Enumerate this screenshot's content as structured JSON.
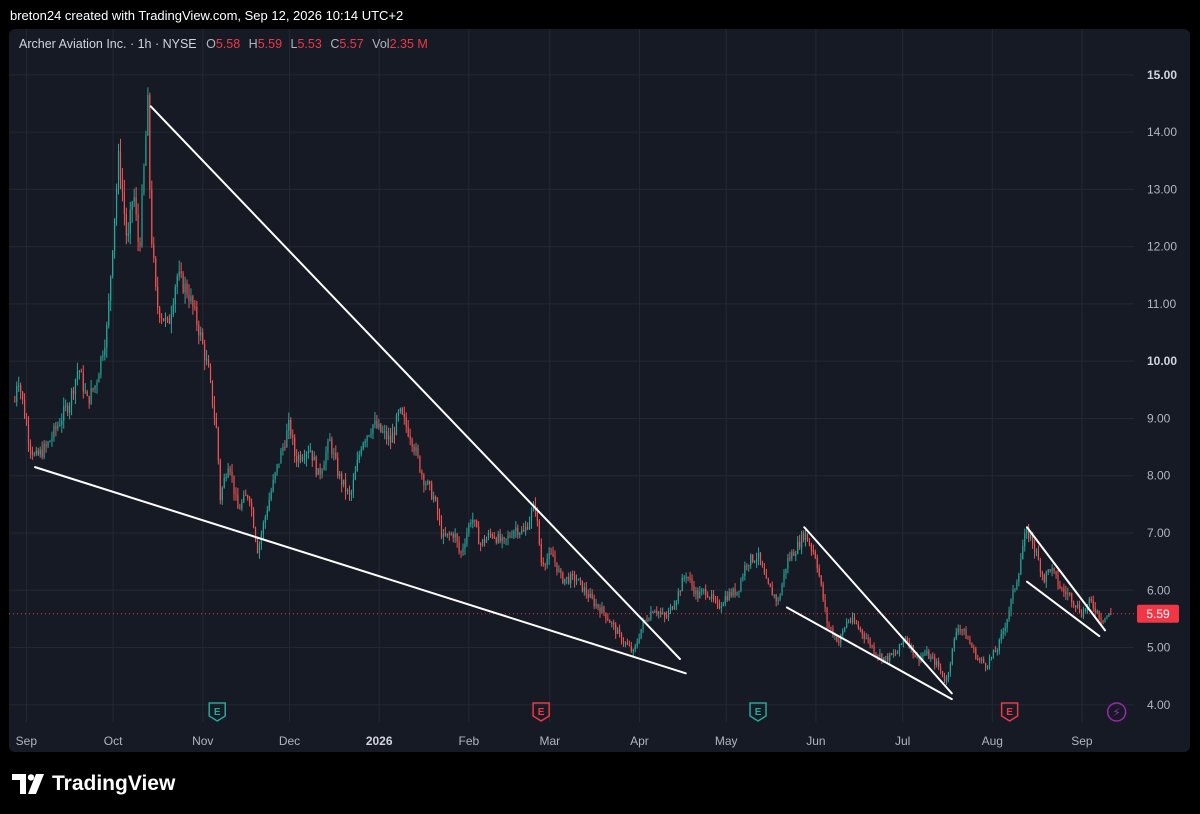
{
  "attribution": "breton24 created with TradingView.com, Sep 12, 2026 10:14 UTC+2",
  "legend": {
    "symbol": "Archer Aviation Inc. · 1h · NYSE",
    "o_label": "O",
    "o_value": "5.58",
    "h_label": "H",
    "h_value": "5.59",
    "l_label": "L",
    "l_value": "5.53",
    "c_label": "C",
    "c_value": "5.57",
    "vol_label": "Vol",
    "vol_value": "2.35 M"
  },
  "brand": {
    "name": "TradingView"
  },
  "colors": {
    "up": "#26a69a",
    "down": "#ef5350",
    "background": "#161a25",
    "grid": "#242833",
    "trendline": "#ffffff",
    "price_tag": "#f23645",
    "earnings_up": "#26a69a",
    "earnings_down": "#f23645",
    "dividend": "#9c27b0"
  },
  "chart_data": {
    "type": "candlestick",
    "interval": "1h",
    "grid": true,
    "ylim": [
      3.7,
      15.8
    ],
    "y_ticks": [
      "4.00",
      "5.00",
      "6.00",
      "7.00",
      "8.00",
      "9.00",
      "10.00",
      "11.00",
      "12.00",
      "13.00",
      "14.00",
      "15.00"
    ],
    "y_ticks_bold": [
      "10.00",
      "15.00"
    ],
    "x_ticks": [
      "Sep",
      "Oct",
      "Nov",
      "Dec",
      "2026",
      "Feb",
      "Mar",
      "Apr",
      "May",
      "Jun",
      "Jul",
      "Aug",
      "Sep"
    ],
    "x_ticks_bold": [
      "2026"
    ],
    "last_price": "5.59",
    "price_path": [
      [
        "2025-08-28",
        9.3
      ],
      [
        "2025-08-29",
        9.8
      ],
      [
        "2025-09-02",
        8.6
      ],
      [
        "2025-09-04",
        8.3
      ],
      [
        "2025-09-08",
        8.5
      ],
      [
        "2025-09-12",
        8.9
      ],
      [
        "2025-09-16",
        9.3
      ],
      [
        "2025-09-19",
        9.9
      ],
      [
        "2025-09-22",
        9.3
      ],
      [
        "2025-09-25",
        9.6
      ],
      [
        "2025-09-29",
        10.6
      ],
      [
        "2025-10-01",
        12.2
      ],
      [
        "2025-10-03",
        13.6
      ],
      [
        "2025-10-06",
        12.0
      ],
      [
        "2025-10-08",
        13.0
      ],
      [
        "2025-10-10",
        11.9
      ],
      [
        "2025-10-13",
        14.5
      ],
      [
        "2025-10-14",
        12.4
      ],
      [
        "2025-10-16",
        11.0
      ],
      [
        "2025-10-20",
        10.6
      ],
      [
        "2025-10-23",
        11.5
      ],
      [
        "2025-10-27",
        11.2
      ],
      [
        "2025-10-31",
        10.5
      ],
      [
        "2025-11-03",
        9.8
      ],
      [
        "2025-11-06",
        8.7
      ],
      [
        "2025-11-07",
        7.6
      ],
      [
        "2025-11-10",
        8.3
      ],
      [
        "2025-11-13",
        7.4
      ],
      [
        "2025-11-17",
        7.7
      ],
      [
        "2025-11-20",
        6.7
      ],
      [
        "2025-11-24",
        7.6
      ],
      [
        "2025-11-27",
        8.2
      ],
      [
        "2025-12-01",
        8.9
      ],
      [
        "2025-12-03",
        8.3
      ],
      [
        "2025-12-08",
        8.5
      ],
      [
        "2025-12-11",
        8.0
      ],
      [
        "2025-12-15",
        8.6
      ],
      [
        "2025-12-18",
        8.0
      ],
      [
        "2025-12-22",
        7.6
      ],
      [
        "2025-12-26",
        8.6
      ],
      [
        "2025-12-30",
        8.9
      ],
      [
        "2026-01-05",
        8.6
      ],
      [
        "2026-01-08",
        9.1
      ],
      [
        "2026-01-12",
        8.7
      ],
      [
        "2026-01-16",
        8.0
      ],
      [
        "2026-01-20",
        7.6
      ],
      [
        "2026-01-23",
        6.9
      ],
      [
        "2026-01-27",
        7.0
      ],
      [
        "2026-01-29",
        6.6
      ],
      [
        "2026-02-02",
        7.3
      ],
      [
        "2026-02-05",
        6.8
      ],
      [
        "2026-02-09",
        7.0
      ],
      [
        "2026-02-13",
        6.8
      ],
      [
        "2026-02-17",
        7.1
      ],
      [
        "2026-02-20",
        7.0
      ],
      [
        "2026-02-24",
        7.5
      ],
      [
        "2026-02-26",
        6.5
      ],
      [
        "2026-03-02",
        6.6
      ],
      [
        "2026-03-05",
        6.2
      ],
      [
        "2026-03-10",
        6.2
      ],
      [
        "2026-03-16",
        5.8
      ],
      [
        "2026-03-20",
        5.6
      ],
      [
        "2026-03-25",
        5.2
      ],
      [
        "2026-03-30",
        4.9
      ],
      [
        "2026-04-02",
        5.4
      ],
      [
        "2026-04-06",
        5.7
      ],
      [
        "2026-04-10",
        5.5
      ],
      [
        "2026-04-14",
        5.9
      ],
      [
        "2026-04-17",
        6.3
      ],
      [
        "2026-04-21",
        5.9
      ],
      [
        "2026-04-24",
        6.0
      ],
      [
        "2026-04-28",
        5.7
      ],
      [
        "2026-05-01",
        5.9
      ],
      [
        "2026-05-05",
        6.0
      ],
      [
        "2026-05-08",
        6.5
      ],
      [
        "2026-05-12",
        6.6
      ],
      [
        "2026-05-15",
        6.1
      ],
      [
        "2026-05-19",
        5.8
      ],
      [
        "2026-05-22",
        6.5
      ],
      [
        "2026-05-26",
        6.8
      ],
      [
        "2026-05-28",
        7.0
      ],
      [
        "2026-06-01",
        6.6
      ],
      [
        "2026-06-03",
        6.0
      ],
      [
        "2026-06-05",
        5.4
      ],
      [
        "2026-06-09",
        5.1
      ],
      [
        "2026-06-12",
        5.5
      ],
      [
        "2026-06-15",
        5.4
      ],
      [
        "2026-06-18",
        5.2
      ],
      [
        "2026-06-22",
        4.9
      ],
      [
        "2026-06-25",
        4.8
      ],
      [
        "2026-06-29",
        4.9
      ],
      [
        "2026-07-02",
        5.2
      ],
      [
        "2026-07-06",
        4.8
      ],
      [
        "2026-07-09",
        4.9
      ],
      [
        "2026-07-13",
        4.7
      ],
      [
        "2026-07-16",
        4.4
      ],
      [
        "2026-07-20",
        5.4
      ],
      [
        "2026-07-23",
        5.2
      ],
      [
        "2026-07-27",
        4.8
      ],
      [
        "2026-07-30",
        4.7
      ],
      [
        "2026-08-03",
        5.0
      ],
      [
        "2026-08-06",
        5.5
      ],
      [
        "2026-08-10",
        6.3
      ],
      [
        "2026-08-12",
        6.9
      ],
      [
        "2026-08-14",
        7.0
      ],
      [
        "2026-08-17",
        6.5
      ],
      [
        "2026-08-19",
        6.2
      ],
      [
        "2026-08-21",
        6.4
      ],
      [
        "2026-08-25",
        6.0
      ],
      [
        "2026-08-28",
        5.9
      ],
      [
        "2026-09-01",
        5.6
      ],
      [
        "2026-09-04",
        5.8
      ],
      [
        "2026-09-08",
        5.5
      ],
      [
        "2026-09-11",
        5.58
      ]
    ],
    "trendlines": [
      {
        "from": [
          "2025-09-04",
          8.15
        ],
        "to": [
          "2026-04-17",
          4.55
        ]
      },
      {
        "from": [
          "2025-10-14",
          14.45
        ],
        "to": [
          "2026-04-15",
          4.8
        ]
      },
      {
        "from": [
          "2026-05-22",
          5.7
        ],
        "to": [
          "2026-07-18",
          4.1
        ]
      },
      {
        "from": [
          "2026-05-28",
          7.1
        ],
        "to": [
          "2026-07-18",
          4.2
        ]
      },
      {
        "from": [
          "2026-08-13",
          6.15
        ],
        "to": [
          "2026-09-07",
          5.2
        ]
      },
      {
        "from": [
          "2026-08-13",
          7.1
        ],
        "to": [
          "2026-09-09",
          5.3
        ]
      }
    ],
    "events": [
      {
        "type": "E",
        "date": "2025-11-06",
        "tone": "up"
      },
      {
        "type": "E",
        "date": "2026-02-26",
        "tone": "down"
      },
      {
        "type": "E",
        "date": "2026-05-12",
        "tone": "up"
      },
      {
        "type": "E",
        "date": "2026-08-07",
        "tone": "down"
      },
      {
        "type": "dividend",
        "date": "2026-09-13",
        "tone": "purple"
      }
    ]
  }
}
